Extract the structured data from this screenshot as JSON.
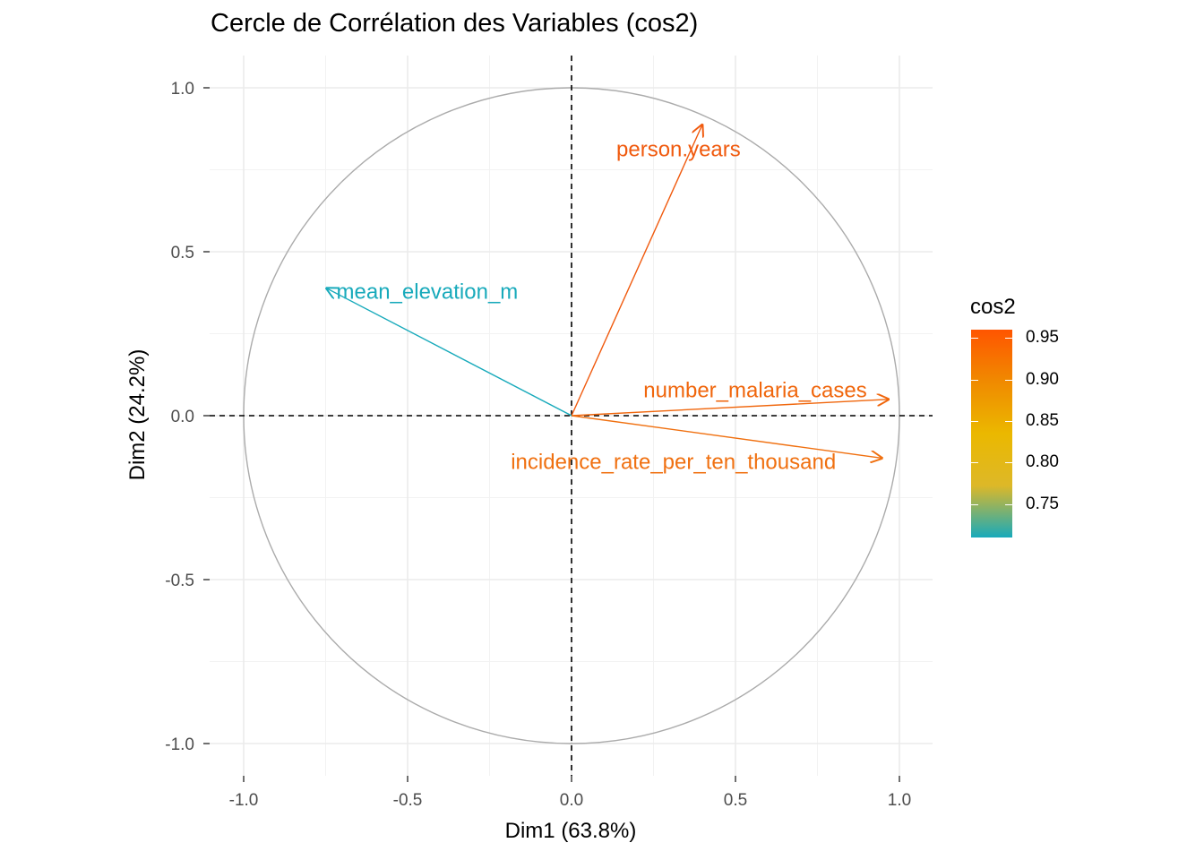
{
  "chart_data": {
    "type": "scatter",
    "subtype": "pca-correlation-circle",
    "title": "Cercle de Corrélation des Variables (cos2)",
    "xlabel": "Dim1 (63.8%)",
    "ylabel": "Dim2 (24.2%)",
    "xlim": [
      -1.0,
      1.0
    ],
    "ylim": [
      -1.0,
      1.0
    ],
    "xticks": [
      -1.0,
      -0.5,
      0.0,
      0.5,
      1.0
    ],
    "yticks": [
      -1.0,
      -0.5,
      0.0,
      0.5,
      1.0
    ],
    "xtick_labels": [
      "-1.0",
      "-0.5",
      "0.0",
      "0.5",
      "1.0"
    ],
    "ytick_labels": [
      "-1.0",
      "-0.5",
      "0.0",
      "0.5",
      "1.0"
    ],
    "grid": true,
    "reference_lines": {
      "x": 0,
      "y": 0,
      "style": "dashed"
    },
    "unit_circle": true,
    "variables": [
      {
        "name": "person.years",
        "x": 0.4,
        "y": 0.89,
        "cos2": 0.95,
        "color": "#F05A0E"
      },
      {
        "name": "mean_elevation_m",
        "x": -0.75,
        "y": 0.39,
        "cos2": 0.71,
        "color": "#18AABB"
      },
      {
        "name": "number_malaria_cases",
        "x": 0.97,
        "y": 0.05,
        "cos2": 0.94,
        "color": "#F0660C"
      },
      {
        "name": "incidence_rate_per_ten_thousand",
        "x": 0.95,
        "y": -0.13,
        "cos2": 0.92,
        "color": "#F07010"
      }
    ],
    "legend": {
      "title": "cos2",
      "position": "right",
      "range": [
        0.71,
        0.96
      ],
      "ticks": [
        0.95,
        0.9,
        0.85,
        0.8,
        0.75
      ],
      "tick_labels": [
        "0.95",
        "0.90",
        "0.85",
        "0.80",
        "0.75"
      ],
      "colors": [
        "#18AABB",
        "#DDB828",
        "#EBB800",
        "#F08A00",
        "#FF5500"
      ]
    }
  }
}
